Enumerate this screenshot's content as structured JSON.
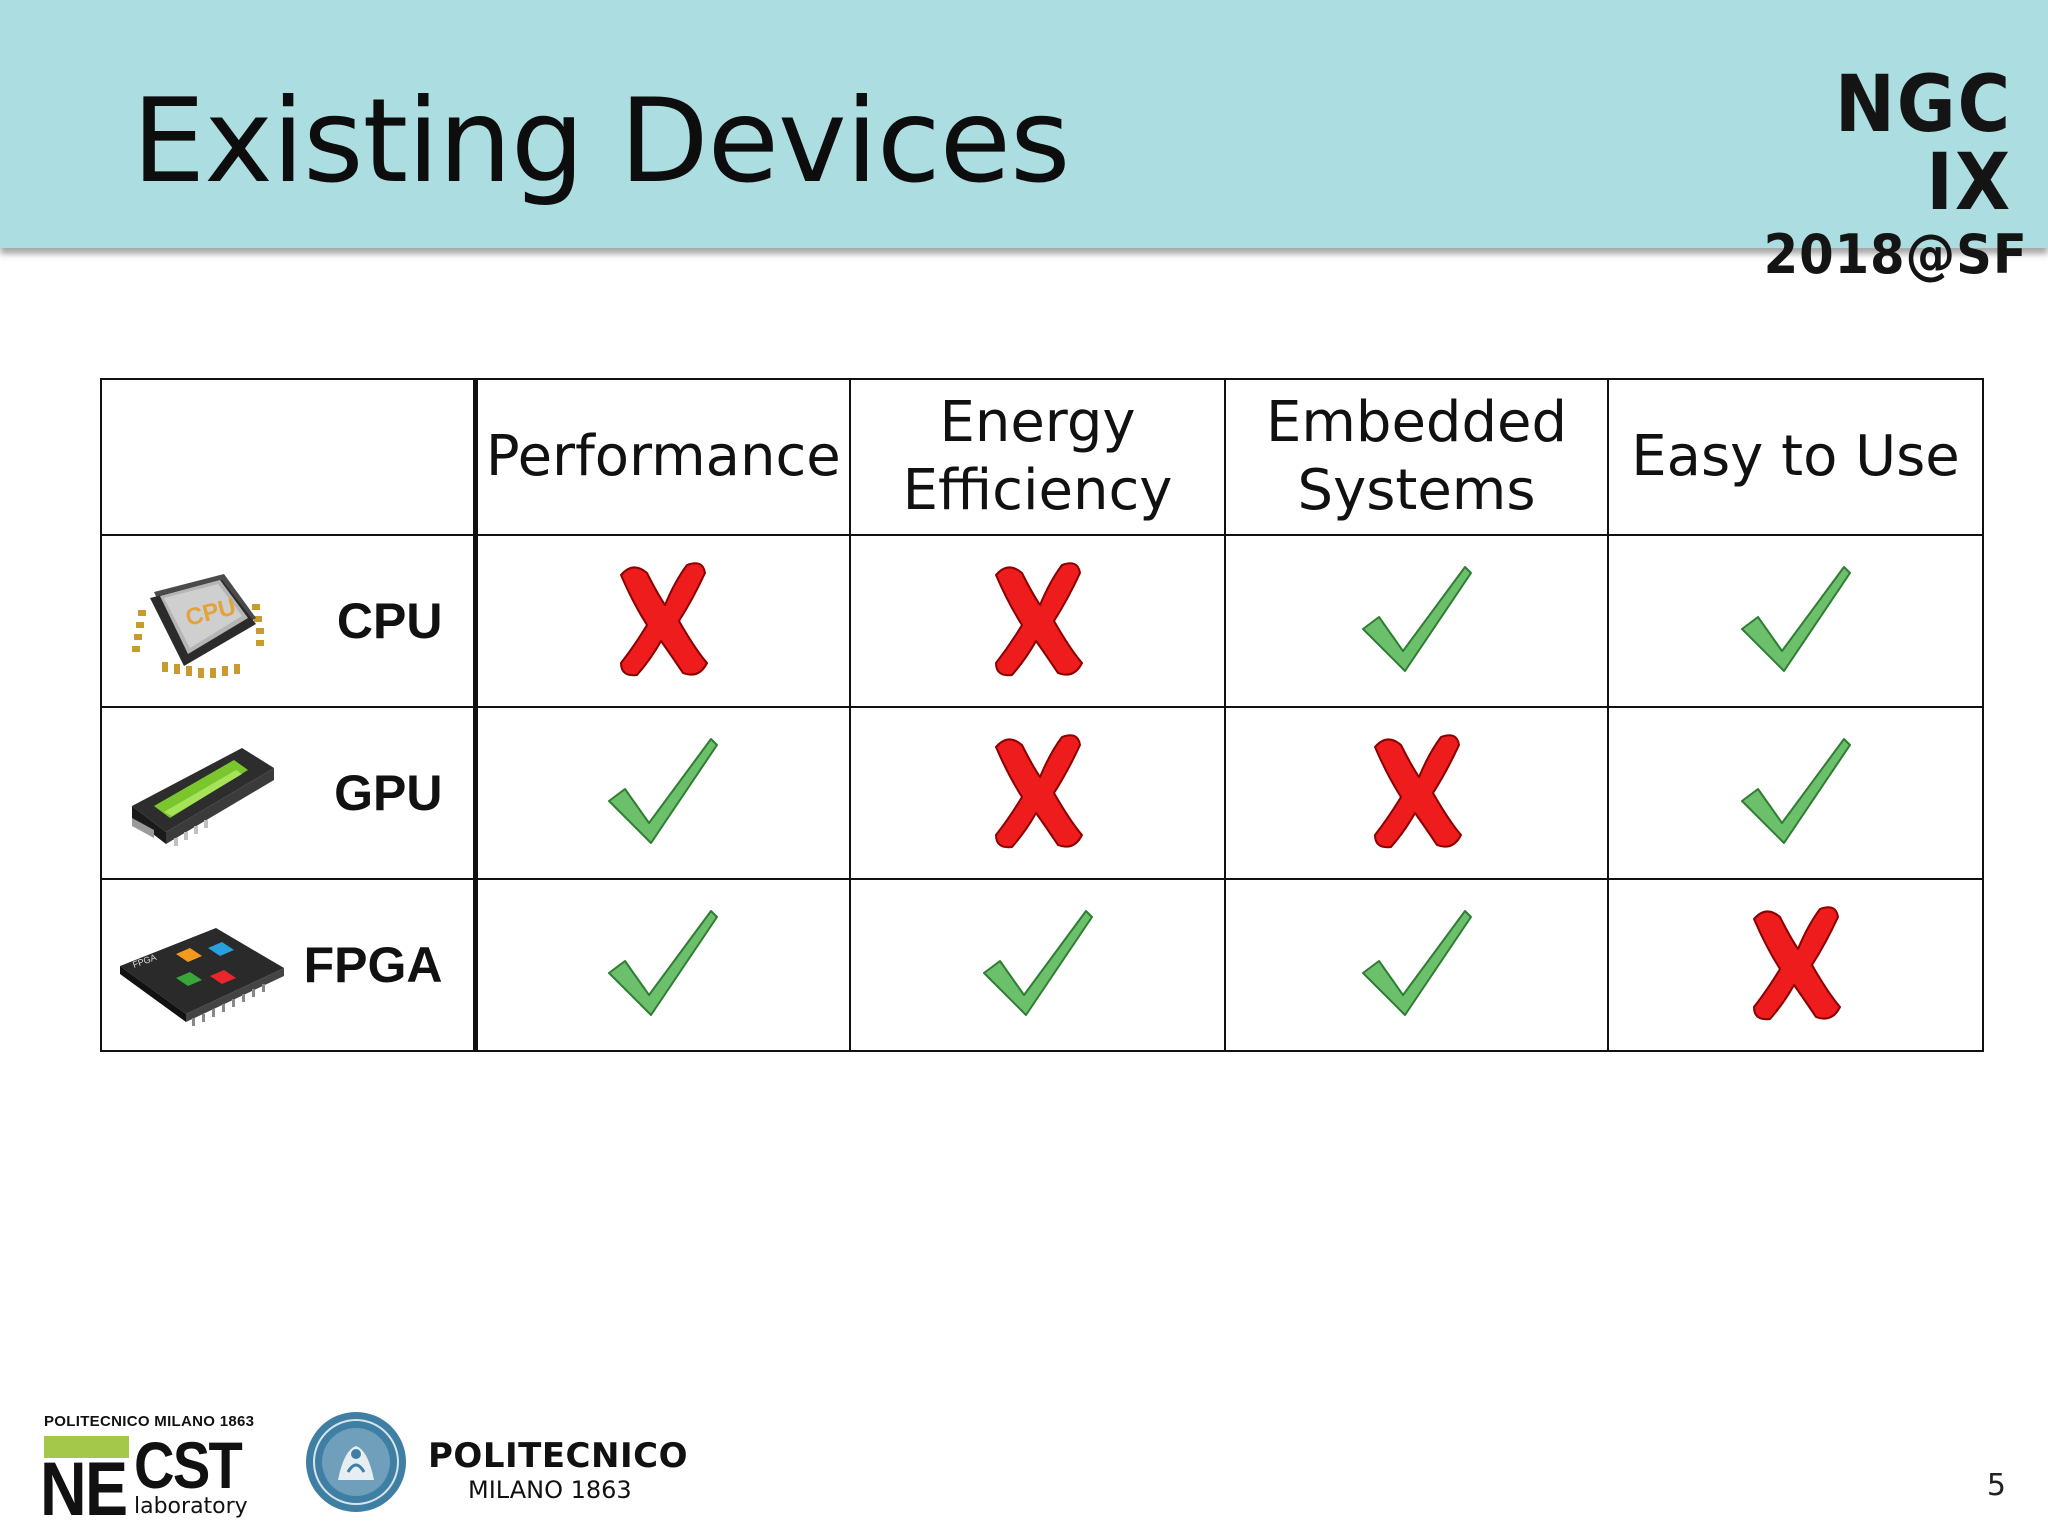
{
  "slide": {
    "title": "Existing Devices",
    "conference": {
      "name": "NGC IX",
      "date": "2018@SF"
    },
    "page_number": "5"
  },
  "table": {
    "columns": [
      "Performance",
      "Energy Efficiency",
      "Embedded Systems",
      "Easy to Use"
    ],
    "rows": [
      {
        "device": "CPU",
        "icon": "cpu-chip-icon",
        "values": [
          "no",
          "no",
          "yes",
          "yes"
        ]
      },
      {
        "device": "GPU",
        "icon": "graphics-card-icon",
        "values": [
          "yes",
          "no",
          "no",
          "yes"
        ]
      },
      {
        "device": "FPGA",
        "icon": "fpga-board-icon",
        "values": [
          "yes",
          "yes",
          "yes",
          "no"
        ]
      }
    ]
  },
  "footer": {
    "necst": {
      "top_line": "POLITECNICO MILANO 1863",
      "ne": "NE",
      "cst": "CST",
      "lab": "laboratory"
    },
    "politecnico": {
      "name": "POLITECNICO",
      "sub": "MILANO 1863"
    }
  },
  "colors": {
    "header_bg": "#abdde1",
    "check": "#6cc06c",
    "cross": "#ee1c1c"
  }
}
